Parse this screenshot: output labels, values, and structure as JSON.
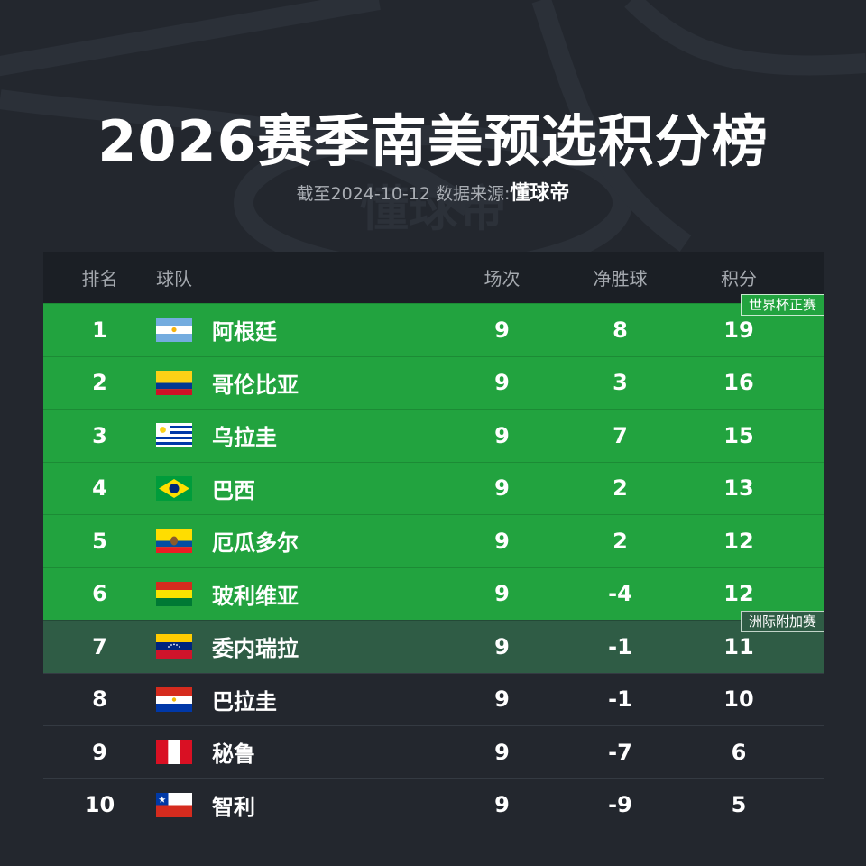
{
  "title": "2026赛季南美预选积分榜",
  "subtitle": {
    "text": "截至2024-10-12 数据来源:",
    "brand": "懂球帝"
  },
  "headers": {
    "rank": "排名",
    "team": "球队",
    "played": "场次",
    "goal_diff": "净胜球",
    "points": "积分"
  },
  "zones": {
    "direct": "世界杯正赛",
    "playoff": "洲际附加赛"
  },
  "colors": {
    "direct_zone": "#22a33f",
    "playoff_zone": "#2f5c45",
    "background": "#23272e"
  },
  "rows": [
    {
      "rank": "1",
      "team": "阿根廷",
      "played": "9",
      "gd": "8",
      "pts": "19",
      "flag": "argentina-flag",
      "zone": "direct"
    },
    {
      "rank": "2",
      "team": "哥伦比亚",
      "played": "9",
      "gd": "3",
      "pts": "16",
      "flag": "colombia-flag",
      "zone": "direct"
    },
    {
      "rank": "3",
      "team": "乌拉圭",
      "played": "9",
      "gd": "7",
      "pts": "15",
      "flag": "uruguay-flag",
      "zone": "direct"
    },
    {
      "rank": "4",
      "team": "巴西",
      "played": "9",
      "gd": "2",
      "pts": "13",
      "flag": "brazil-flag",
      "zone": "direct"
    },
    {
      "rank": "5",
      "team": "厄瓜多尔",
      "played": "9",
      "gd": "2",
      "pts": "12",
      "flag": "ecuador-flag",
      "zone": "direct"
    },
    {
      "rank": "6",
      "team": "玻利维亚",
      "played": "9",
      "gd": "-4",
      "pts": "12",
      "flag": "bolivia-flag",
      "zone": "direct"
    },
    {
      "rank": "7",
      "team": "委内瑞拉",
      "played": "9",
      "gd": "-1",
      "pts": "11",
      "flag": "venezuela-flag",
      "zone": "playoff"
    },
    {
      "rank": "8",
      "team": "巴拉圭",
      "played": "9",
      "gd": "-1",
      "pts": "10",
      "flag": "paraguay-flag",
      "zone": "none"
    },
    {
      "rank": "9",
      "team": "秘鲁",
      "played": "9",
      "gd": "-7",
      "pts": "6",
      "flag": "peru-flag",
      "zone": "none"
    },
    {
      "rank": "10",
      "team": "智利",
      "played": "9",
      "gd": "-9",
      "pts": "5",
      "flag": "chile-flag",
      "zone": "none"
    }
  ]
}
